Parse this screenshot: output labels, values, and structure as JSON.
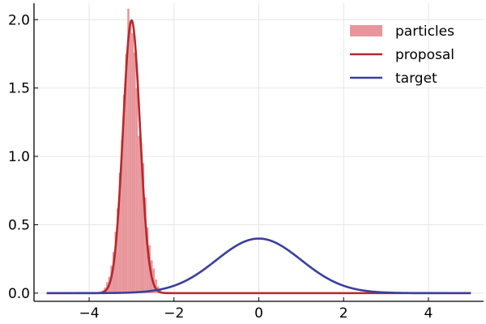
{
  "chart_data": {
    "type": "line",
    "title": "",
    "xlabel": "",
    "ylabel": "",
    "xlim": [
      -5.3,
      5.3
    ],
    "ylim": [
      -0.06,
      2.12
    ],
    "grid": true,
    "legend_position": "top-right",
    "x_ticks": [
      {
        "value": -4,
        "label": "−4"
      },
      {
        "value": -2,
        "label": "−2"
      },
      {
        "value": 0,
        "label": "0"
      },
      {
        "value": 2,
        "label": "2"
      },
      {
        "value": 4,
        "label": "4"
      }
    ],
    "y_ticks": [
      {
        "value": 0,
        "label": "0.0"
      },
      {
        "value": 0.5,
        "label": "0.5"
      },
      {
        "value": 1.0,
        "label": "1.0"
      },
      {
        "value": 1.5,
        "label": "1.5"
      },
      {
        "value": 2.0,
        "label": "2.0"
      }
    ],
    "series": [
      {
        "name": "particles",
        "kind": "histogram",
        "color": "#e8969b",
        "bins": [
          {
            "x0": -3.7,
            "x1": -3.65,
            "value": 0.02
          },
          {
            "x0": -3.65,
            "x1": -3.6,
            "value": 0.04
          },
          {
            "x0": -3.6,
            "x1": -3.55,
            "value": 0.08
          },
          {
            "x0": -3.55,
            "x1": -3.5,
            "value": 0.12
          },
          {
            "x0": -3.5,
            "x1": -3.45,
            "value": 0.2
          },
          {
            "x0": -3.45,
            "x1": -3.4,
            "value": 0.3
          },
          {
            "x0": -3.4,
            "x1": -3.35,
            "value": 0.45
          },
          {
            "x0": -3.35,
            "x1": -3.3,
            "value": 0.62
          },
          {
            "x0": -3.3,
            "x1": -3.25,
            "value": 0.88
          },
          {
            "x0": -3.25,
            "x1": -3.2,
            "value": 1.12
          },
          {
            "x0": -3.2,
            "x1": -3.15,
            "value": 1.45
          },
          {
            "x0": -3.15,
            "x1": -3.1,
            "value": 1.75
          },
          {
            "x0": -3.1,
            "x1": -3.05,
            "value": 2.08
          },
          {
            "x0": -3.05,
            "x1": -3.0,
            "value": 1.98
          },
          {
            "x0": -3.0,
            "x1": -2.95,
            "value": 1.9
          },
          {
            "x0": -2.95,
            "x1": -2.9,
            "value": 1.76
          },
          {
            "x0": -2.9,
            "x1": -2.85,
            "value": 1.5
          },
          {
            "x0": -2.85,
            "x1": -2.8,
            "value": 1.15
          },
          {
            "x0": -2.8,
            "x1": -2.75,
            "value": 1.1
          },
          {
            "x0": -2.75,
            "x1": -2.7,
            "value": 0.95
          },
          {
            "x0": -2.7,
            "x1": -2.65,
            "value": 0.7
          },
          {
            "x0": -2.65,
            "x1": -2.6,
            "value": 0.48
          },
          {
            "x0": -2.6,
            "x1": -2.55,
            "value": 0.35
          },
          {
            "x0": -2.55,
            "x1": -2.5,
            "value": 0.24
          },
          {
            "x0": -2.5,
            "x1": -2.45,
            "value": 0.18
          },
          {
            "x0": -2.45,
            "x1": -2.4,
            "value": 0.1
          },
          {
            "x0": -2.4,
            "x1": -2.35,
            "value": 0.05
          },
          {
            "x0": -2.35,
            "x1": -2.3,
            "value": 0.02
          }
        ]
      },
      {
        "name": "proposal",
        "kind": "line",
        "color": "#b5292c",
        "distribution": "normal",
        "mean": -3.0,
        "sd": 0.2,
        "x_range": [
          -5,
          5
        ]
      },
      {
        "name": "target",
        "kind": "line",
        "color": "#3a3f9d",
        "distribution": "normal",
        "mean": 0.0,
        "sd": 1.0,
        "x_range": [
          -5,
          5
        ]
      }
    ]
  }
}
